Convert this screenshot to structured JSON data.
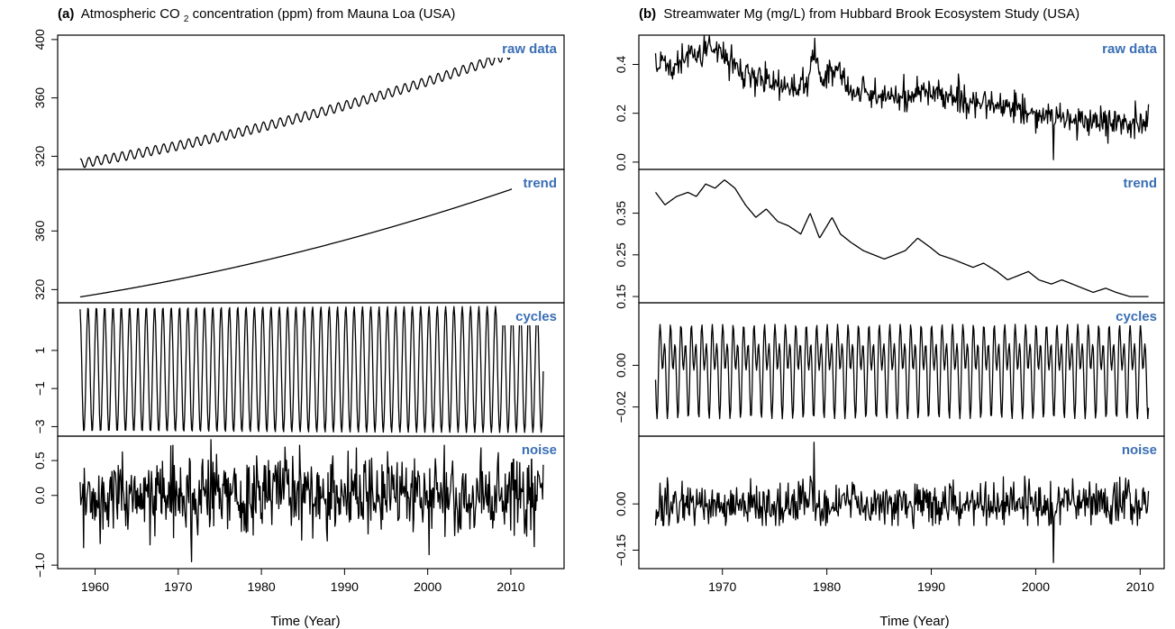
{
  "figure": {
    "xlabel": "Time (Year)",
    "panel_labels": [
      "raw data",
      "trend",
      "cycles",
      "noise"
    ],
    "label_color": "#3a6fb5",
    "line_color": "#000000"
  },
  "chart_data": [
    {
      "id": "a",
      "type": "line",
      "tag": "(a)",
      "title_before": "Atmospheric CO",
      "title_sub": "2",
      "title_after": " concentration (ppm) from Mauna Loa (USA)",
      "xlabel": "Time (Year)",
      "xlim": [
        1955.5,
        2016.4
      ],
      "xticks": [
        1960,
        1970,
        1980,
        1990,
        2000,
        2010
      ],
      "x_start": 1958.2,
      "x_end": 2013.9,
      "panels": [
        {
          "name": "raw data",
          "ylim": [
            311,
            403
          ],
          "yticks": [
            "320",
            "360",
            "400"
          ],
          "ytick_values": [
            320,
            360,
            400
          ],
          "start": 315,
          "end": 398,
          "seasonal_amplitude": 3.2
        },
        {
          "name": "trend",
          "ylim": [
            311,
            402
          ],
          "yticks": [
            "320",
            "360"
          ],
          "ytick_values": [
            320,
            360
          ],
          "start": 315,
          "end": 396
        },
        {
          "name": "cycles",
          "ylim": [
            -3.5,
            3.5
          ],
          "yticks": [
            "−3",
            "−1",
            "1"
          ],
          "ytick_values": [
            -3,
            -1,
            1
          ],
          "amplitude": 3.3
        },
        {
          "name": "noise",
          "ylim": [
            -1.05,
            0.85
          ],
          "yticks": [
            "−1.0",
            "0.0",
            "0.5"
          ],
          "ytick_values": [
            -1.0,
            0.0,
            0.5
          ],
          "noise_sd": 0.28,
          "spikes": [
            [
              1973.9,
              0.8
            ],
            [
              1971.6,
              -0.95
            ],
            [
              2000.2,
              -0.85
            ]
          ]
        }
      ]
    },
    {
      "id": "b",
      "type": "line",
      "tag": "(b)",
      "title_before": "Streamwater Mg (mg/L) from Hubbard Brook Ecosystem Study (USA)",
      "title_sub": "",
      "title_after": "",
      "xlabel": "Time (Year)",
      "xlim": [
        1962.0,
        2012.3
      ],
      "xticks": [
        1970,
        1980,
        1990,
        2000,
        2010
      ],
      "x_start": 1963.6,
      "x_end": 2010.8,
      "panels": [
        {
          "name": "raw data",
          "ylim": [
            -0.03,
            0.52
          ],
          "yticks": [
            "0.0",
            "0.2",
            "0.4"
          ],
          "ytick_values": [
            0.0,
            0.2,
            0.4
          ],
          "points": [
            [
              1963.6,
              0.36
            ],
            [
              1964,
              0.42
            ],
            [
              1965,
              0.38
            ],
            [
              1966,
              0.41
            ],
            [
              1967,
              0.44
            ],
            [
              1968,
              0.43
            ],
            [
              1969,
              0.47
            ],
            [
              1970,
              0.44
            ],
            [
              1971,
              0.4
            ],
            [
              1972,
              0.36
            ],
            [
              1973,
              0.35
            ],
            [
              1974,
              0.33
            ],
            [
              1976,
              0.31
            ],
            [
              1978,
              0.3
            ],
            [
              1978.8,
              0.46
            ],
            [
              1979.5,
              0.32
            ],
            [
              1980.8,
              0.41
            ],
            [
              1982,
              0.3
            ],
            [
              1984,
              0.28
            ],
            [
              1986,
              0.26
            ],
            [
              1988,
              0.27
            ],
            [
              1989,
              0.3
            ],
            [
              1990,
              0.28
            ],
            [
              1992,
              0.26
            ],
            [
              1994,
              0.25
            ],
            [
              1996,
              0.24
            ],
            [
              1998,
              0.22
            ],
            [
              2000,
              0.2
            ],
            [
              2001.7,
              0.19
            ],
            [
              2003,
              0.18
            ],
            [
              2005,
              0.17
            ],
            [
              2007,
              0.16
            ],
            [
              2009,
              0.15
            ],
            [
              2010.8,
              0.16
            ]
          ],
          "noise_sd": 0.03,
          "spikes": [
            [
              2001.7,
              0.01
            ]
          ]
        },
        {
          "name": "trend",
          "ylim": [
            0.135,
            0.455
          ],
          "yticks": [
            "0.15",
            "0.25",
            "0.35"
          ],
          "ytick_values": [
            0.15,
            0.25,
            0.35
          ],
          "points": [
            [
              1963.6,
              0.4
            ],
            [
              1964.5,
              0.37
            ],
            [
              1965.6,
              0.39
            ],
            [
              1966.7,
              0.4
            ],
            [
              1967.5,
              0.39
            ],
            [
              1968.4,
              0.42
            ],
            [
              1969.3,
              0.41
            ],
            [
              1970.2,
              0.43
            ],
            [
              1971.2,
              0.41
            ],
            [
              1972.2,
              0.37
            ],
            [
              1973.2,
              0.34
            ],
            [
              1974.2,
              0.36
            ],
            [
              1975.3,
              0.33
            ],
            [
              1976.3,
              0.32
            ],
            [
              1977.5,
              0.3
            ],
            [
              1978.4,
              0.35
            ],
            [
              1979.3,
              0.29
            ],
            [
              1980.5,
              0.34
            ],
            [
              1981.3,
              0.3
            ],
            [
              1982.3,
              0.28
            ],
            [
              1983.5,
              0.26
            ],
            [
              1984.5,
              0.25
            ],
            [
              1985.5,
              0.24
            ],
            [
              1986.5,
              0.25
            ],
            [
              1987.5,
              0.26
            ],
            [
              1988.7,
              0.29
            ],
            [
              1989.8,
              0.27
            ],
            [
              1990.8,
              0.25
            ],
            [
              1992,
              0.24
            ],
            [
              1993,
              0.23
            ],
            [
              1994,
              0.22
            ],
            [
              1995,
              0.23
            ],
            [
              1996.3,
              0.21
            ],
            [
              1997.3,
              0.19
            ],
            [
              1998.3,
              0.2
            ],
            [
              1999.3,
              0.21
            ],
            [
              2000.3,
              0.19
            ],
            [
              2001.5,
              0.18
            ],
            [
              2002.5,
              0.19
            ],
            [
              2003.5,
              0.18
            ],
            [
              2004.5,
              0.17
            ],
            [
              2005.5,
              0.16
            ],
            [
              2006.7,
              0.17
            ],
            [
              2007.7,
              0.16
            ],
            [
              2009,
              0.15
            ],
            [
              2010.4,
              0.15
            ]
          ]
        },
        {
          "name": "cycles",
          "ylim": [
            -0.034,
            0.03
          ],
          "yticks": [
            "−0.02",
            "0.00"
          ],
          "ytick_values": [
            -0.02,
            0.0
          ],
          "amplitude": 0.027
        },
        {
          "name": "noise",
          "ylim": [
            -0.21,
            0.22
          ],
          "yticks": [
            "−0.15",
            "0.00"
          ],
          "ytick_values": [
            -0.15,
            0.0
          ],
          "noise_sd": 0.035,
          "spikes": [
            [
              1978.8,
              0.2
            ],
            [
              2001.7,
              -0.19
            ],
            [
              1988.3,
              -0.08
            ]
          ]
        }
      ]
    }
  ]
}
